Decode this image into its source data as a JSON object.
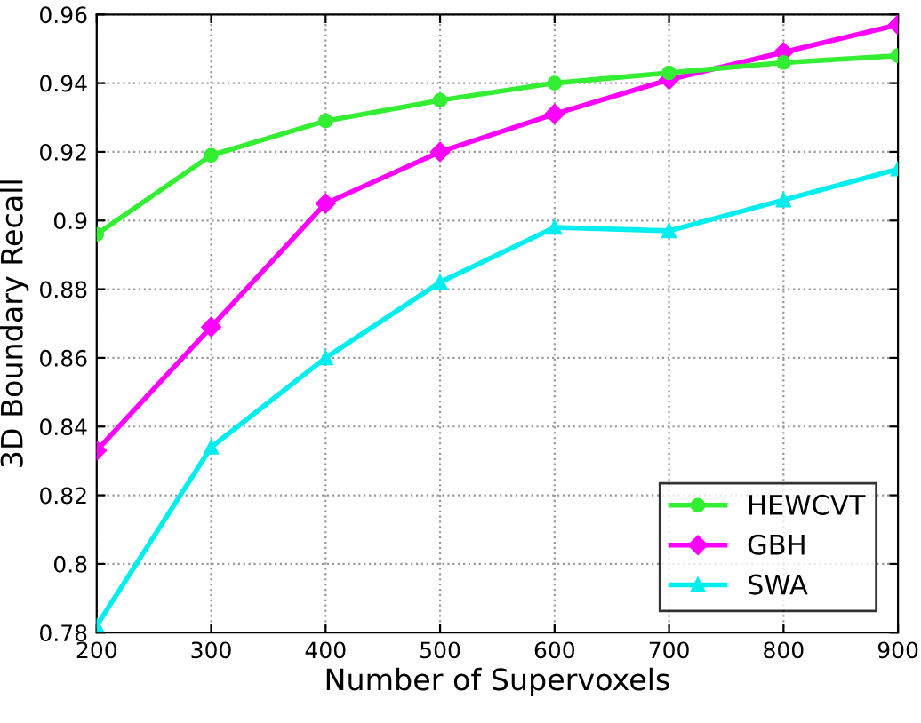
{
  "chart_data": {
    "type": "line",
    "xlabel": "Number of Supervoxels",
    "ylabel": "3D Boundary Recall",
    "x": [
      200,
      300,
      400,
      500,
      600,
      700,
      800,
      900
    ],
    "series": [
      {
        "name": "HEWCVT",
        "color": "#33ee33",
        "marker": "circle",
        "values": [
          0.896,
          0.919,
          0.929,
          0.935,
          0.94,
          0.943,
          0.946,
          0.948
        ]
      },
      {
        "name": "GBH",
        "color": "#ff00ff",
        "marker": "diamond",
        "values": [
          0.833,
          0.869,
          0.905,
          0.92,
          0.931,
          0.941,
          0.949,
          0.957
        ]
      },
      {
        "name": "SWA",
        "color": "#00eeee",
        "marker": "triangle",
        "values": [
          0.782,
          0.834,
          0.86,
          0.882,
          0.898,
          0.897,
          0.906,
          0.915
        ]
      }
    ],
    "xlim": [
      200,
      900
    ],
    "xticks": [
      200,
      300,
      400,
      500,
      600,
      700,
      800,
      900
    ],
    "ylim": [
      0.78,
      0.96
    ],
    "yticks": [
      0.78,
      0.8,
      0.82,
      0.84,
      0.86,
      0.88,
      0.9,
      0.92,
      0.94,
      0.96
    ],
    "grid": true,
    "legend": "bottom right",
    "line_style": "solid"
  }
}
